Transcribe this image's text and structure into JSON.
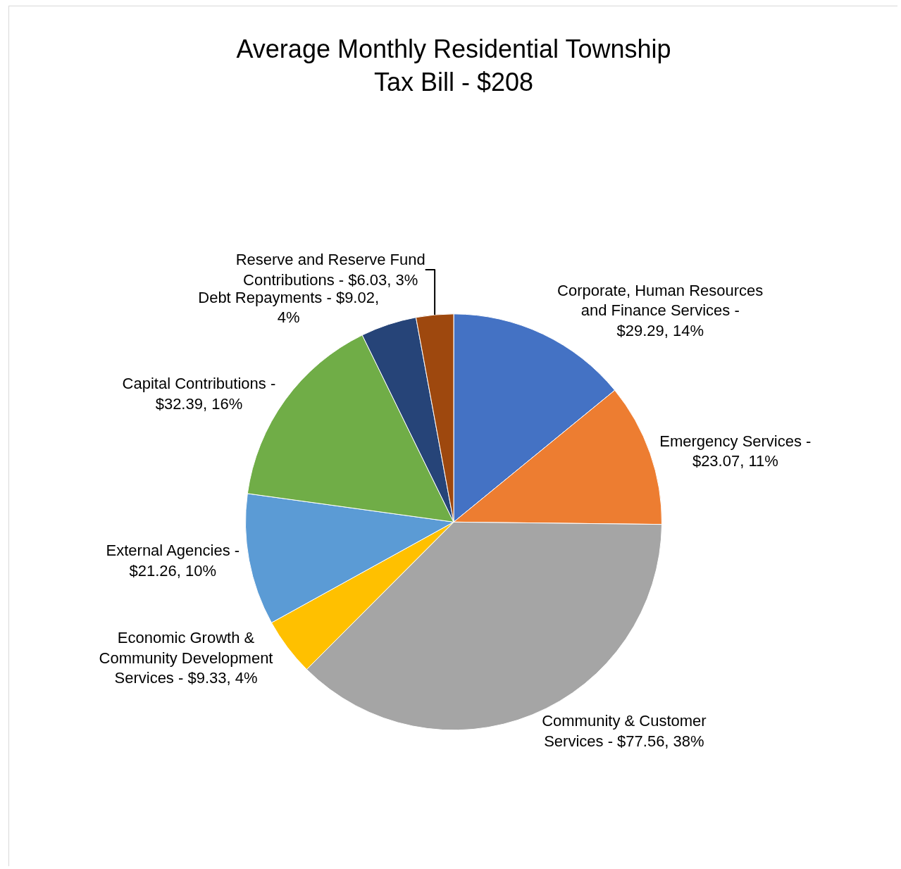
{
  "chart_data": {
    "type": "pie",
    "title": "Average Monthly Residential Township Tax Bill - $208",
    "categories": [
      "Corporate, Human Resources and Finance Services -",
      "Emergency Services -",
      "Community & Customer Services -",
      "Economic Growth & Community Development Services -",
      "External Agencies -",
      "Capital Contributions -",
      "Debt Repayments -",
      "Reserve and Reserve Fund Contributions -"
    ],
    "values": [
      29.29,
      23.07,
      77.56,
      9.33,
      21.26,
      32.39,
      9.02,
      6.03
    ],
    "value_labels": [
      "$29.29, 14%",
      "$23.07, 11%",
      "$77.56, 38%",
      "$9.33, 4%",
      "$21.26, 10%",
      "$32.39, 16%",
      "$9.02, 4%",
      "$6.03, 3%"
    ],
    "colors": [
      "#4472c4",
      "#ed7d31",
      "#a5a5a5",
      "#ffc000",
      "#5b9bd5",
      "#70ad47",
      "#264478",
      "#9e480e"
    ],
    "legend": false
  }
}
